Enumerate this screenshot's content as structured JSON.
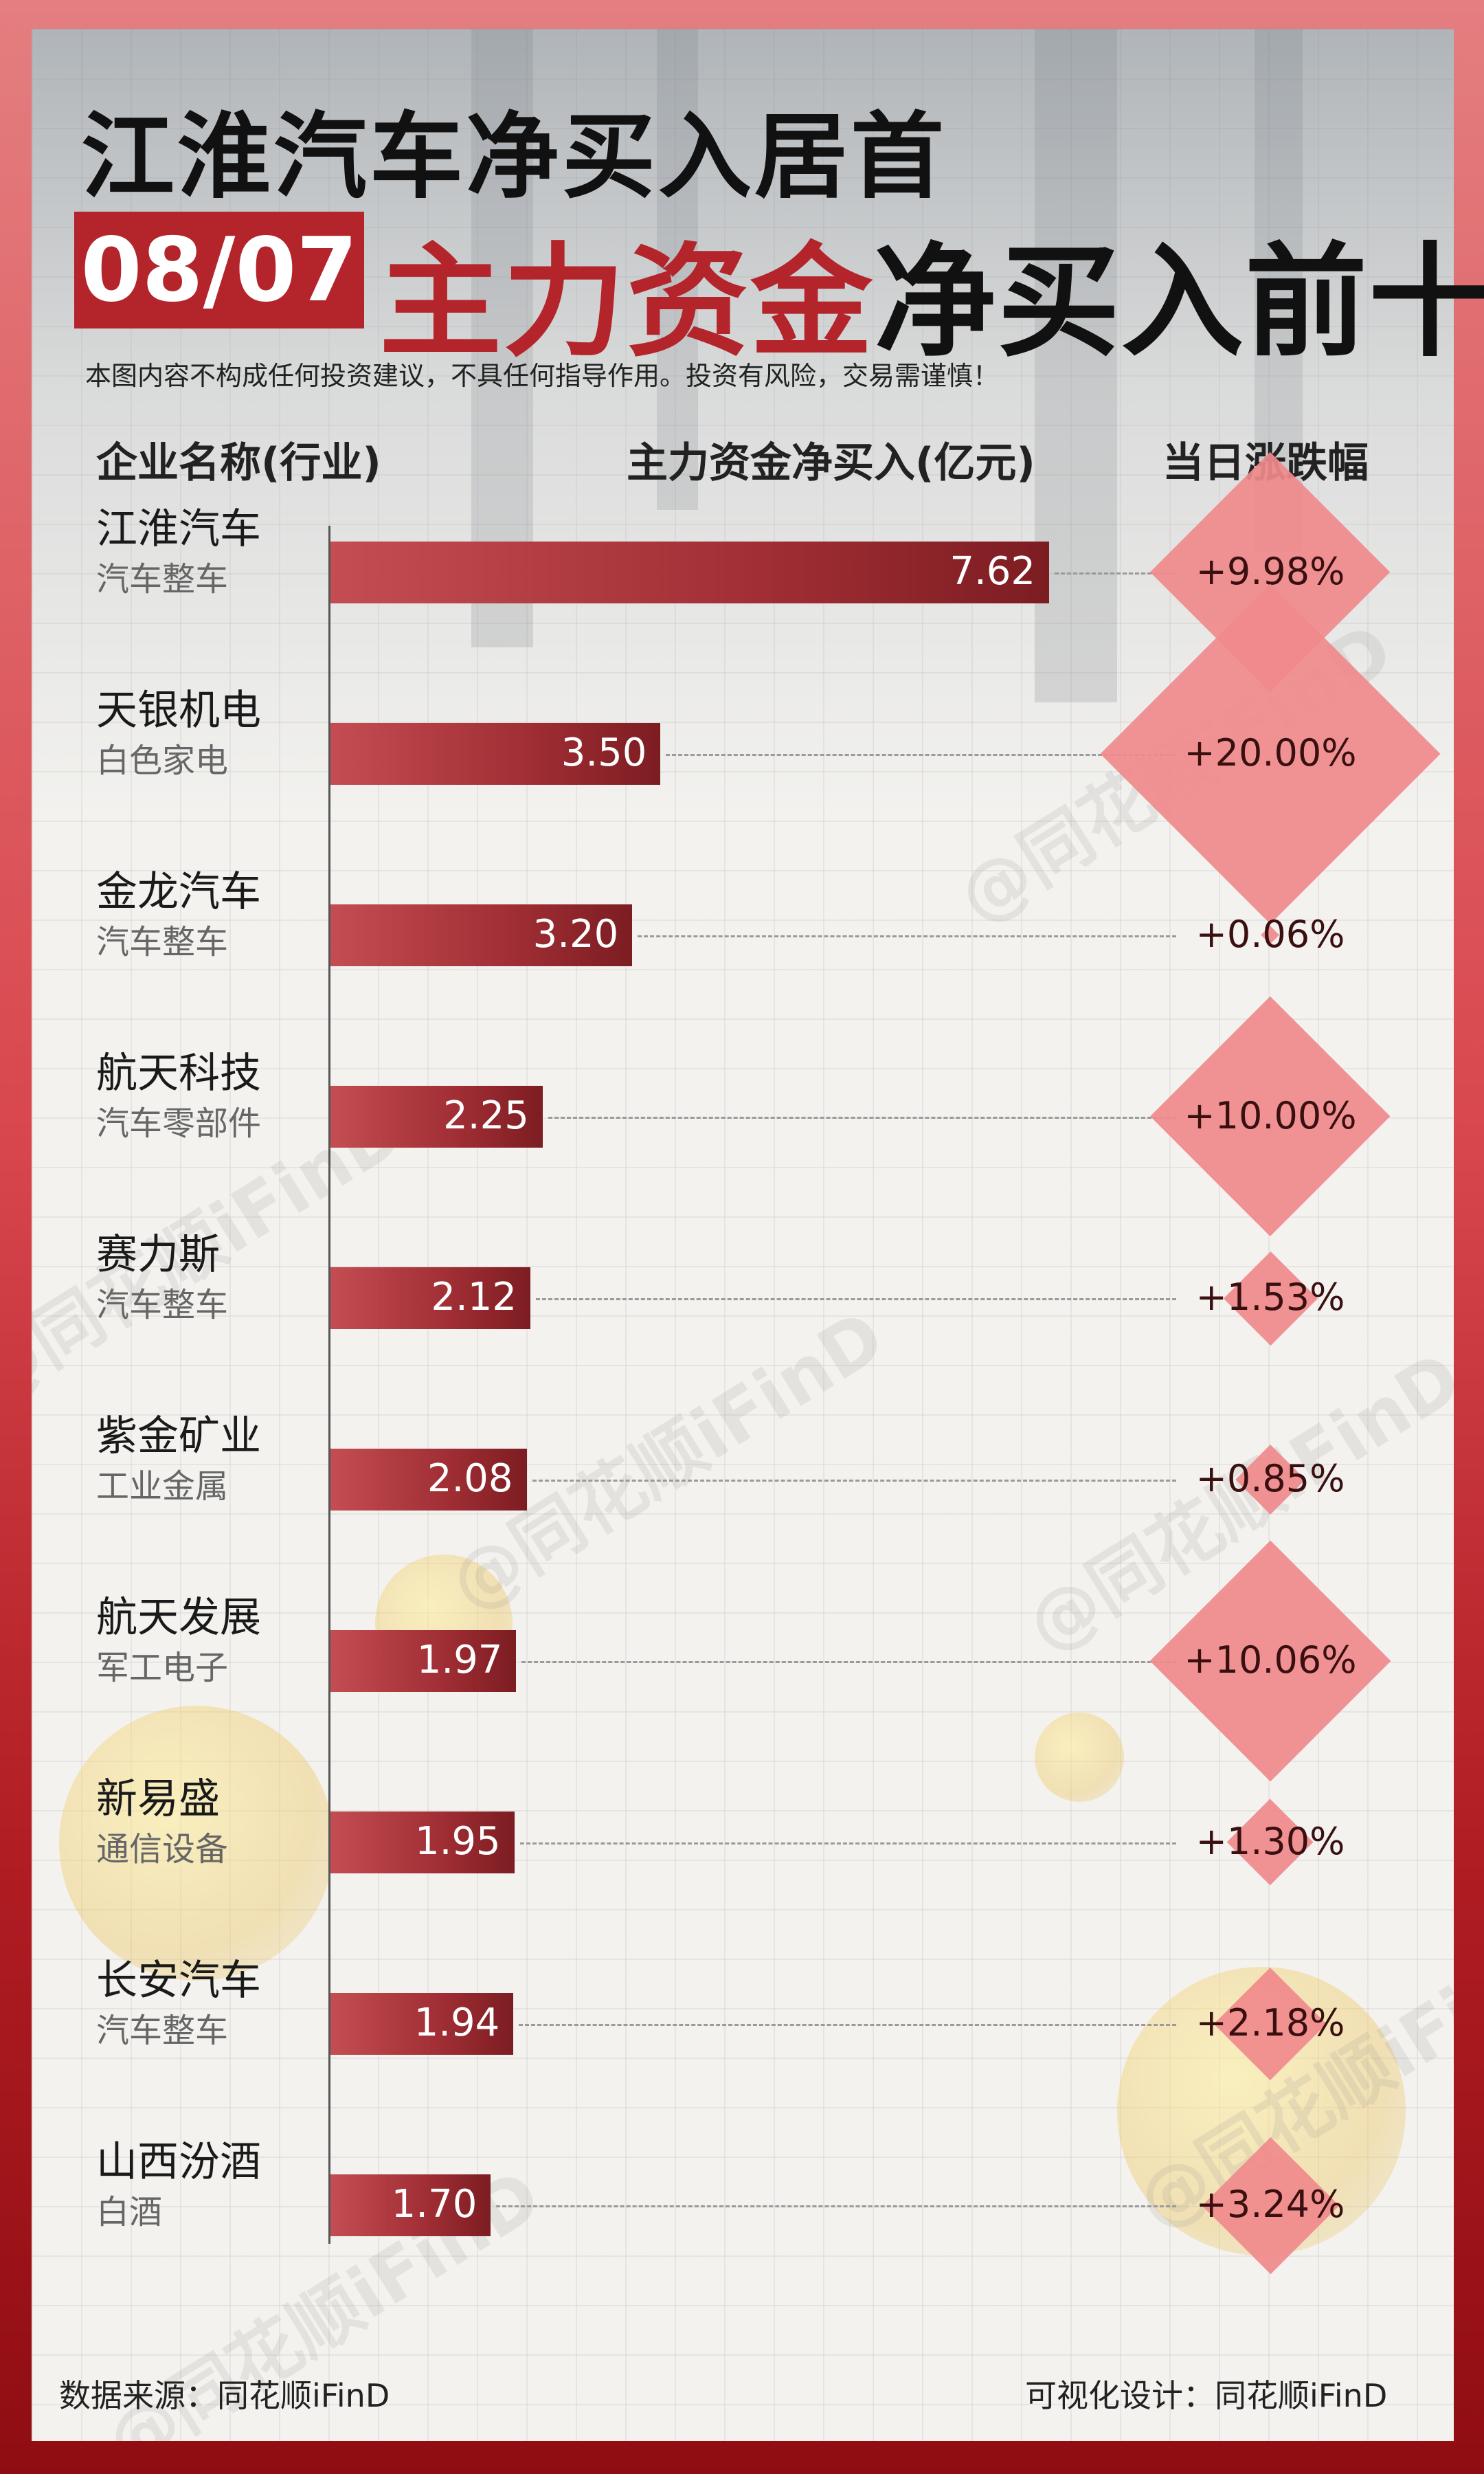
{
  "headline": "江淮汽车净买入居首",
  "date": "08/07",
  "subtitle": {
    "red": "主力资金",
    "dark": "净买入前十"
  },
  "disclaimer": "本图内容不构成任何投资建议，不具任何指导作用。投资有风险，交易需谨慎！",
  "columns": {
    "company": "企业名称(行业)",
    "net_buy": "主力资金净买入(亿元)",
    "change": "当日涨跌幅"
  },
  "watermark": "@同花顺iFinD",
  "chart_data": {
    "type": "bar",
    "orientation": "horizontal",
    "categories": [
      "江淮汽车",
      "天银机电",
      "金龙汽车",
      "航天科技",
      "赛力斯",
      "紫金矿业",
      "航天发展",
      "新易盛",
      "长安汽车",
      "山西汾酒"
    ],
    "industries": [
      "汽车整车",
      "白色家电",
      "汽车整车",
      "汽车零部件",
      "汽车整车",
      "工业金属",
      "军工电子",
      "通信设备",
      "汽车整车",
      "白酒"
    ],
    "values": [
      7.62,
      3.5,
      3.2,
      2.25,
      2.12,
      2.08,
      1.97,
      1.95,
      1.94,
      1.7
    ],
    "value_labels": [
      "7.62",
      "3.50",
      "3.20",
      "2.25",
      "2.12",
      "2.08",
      "1.97",
      "1.95",
      "1.94",
      "1.70"
    ],
    "change_pct": [
      9.98,
      20.0,
      0.06,
      10.0,
      1.53,
      0.85,
      10.06,
      1.3,
      2.18,
      3.24
    ],
    "change_labels": [
      "+9.98%",
      "+20.00%",
      "+0.06%",
      "+10.00%",
      "+1.53%",
      "+0.85%",
      "+10.06%",
      "+1.30%",
      "+2.18%",
      "+3.24%"
    ],
    "xlim": [
      0,
      7.62
    ],
    "bar_color": "#a02e34",
    "marker_color": "#f08a8c"
  },
  "footer": {
    "source": "数据来源：同花顺iFinD",
    "design": "可视化设计：同花顺iFinD"
  }
}
